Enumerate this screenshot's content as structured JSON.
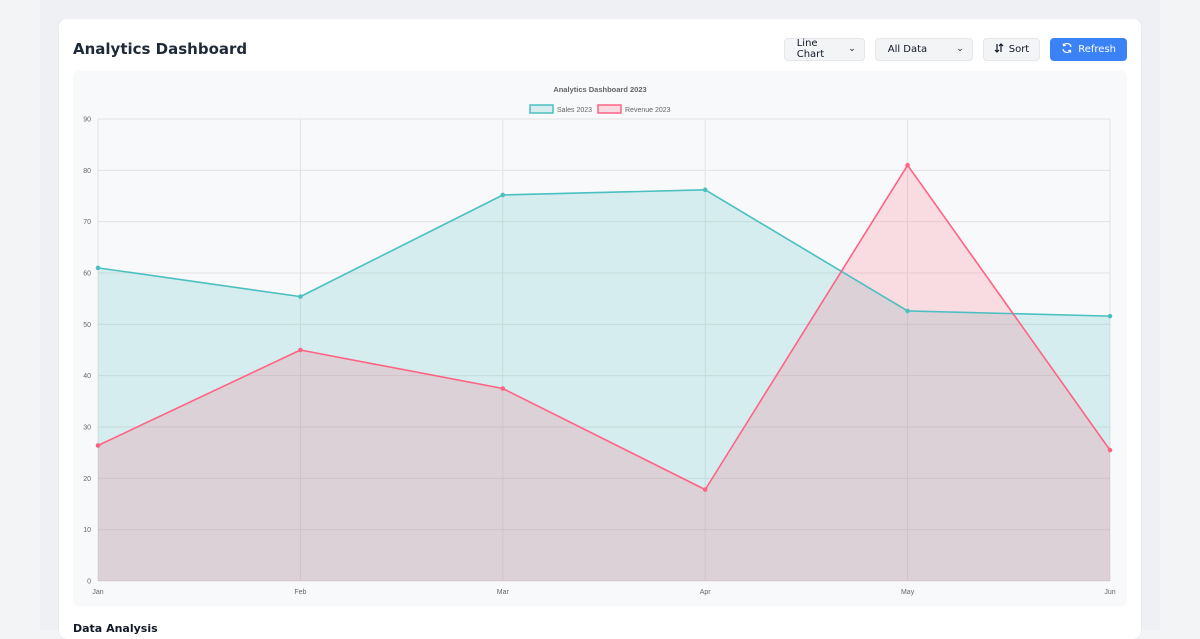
{
  "header": {
    "title": "Analytics Dashboard",
    "chart_type_select": "Line Chart",
    "data_filter_select": "All Data",
    "sort_label": "Sort",
    "refresh_label": "Refresh"
  },
  "analysis": {
    "title": "Data Analysis"
  },
  "colors": {
    "sales_line": "#4bc0c0",
    "sales_fill": "rgba(75,192,192,0.2)",
    "revenue_line": "#ff6384",
    "revenue_fill": "rgba(255,99,132,0.2)",
    "accent": "#3b82f6"
  },
  "chart_data": {
    "type": "area",
    "title": "Analytics Dashboard 2023",
    "categories": [
      "Jan",
      "Feb",
      "Mar",
      "Apr",
      "May",
      "Jun"
    ],
    "series": [
      {
        "name": "Sales 2023",
        "values": [
          61,
          55.4,
          75.2,
          76.2,
          52.6,
          51.6
        ]
      },
      {
        "name": "Revenue 2023",
        "values": [
          26.4,
          45,
          37.5,
          17.8,
          81,
          25.5
        ]
      }
    ],
    "ylim": [
      0,
      90
    ],
    "yticks": [
      0,
      10,
      20,
      30,
      40,
      50,
      60,
      70,
      80,
      90
    ],
    "grid": true,
    "legend": "top-center"
  }
}
